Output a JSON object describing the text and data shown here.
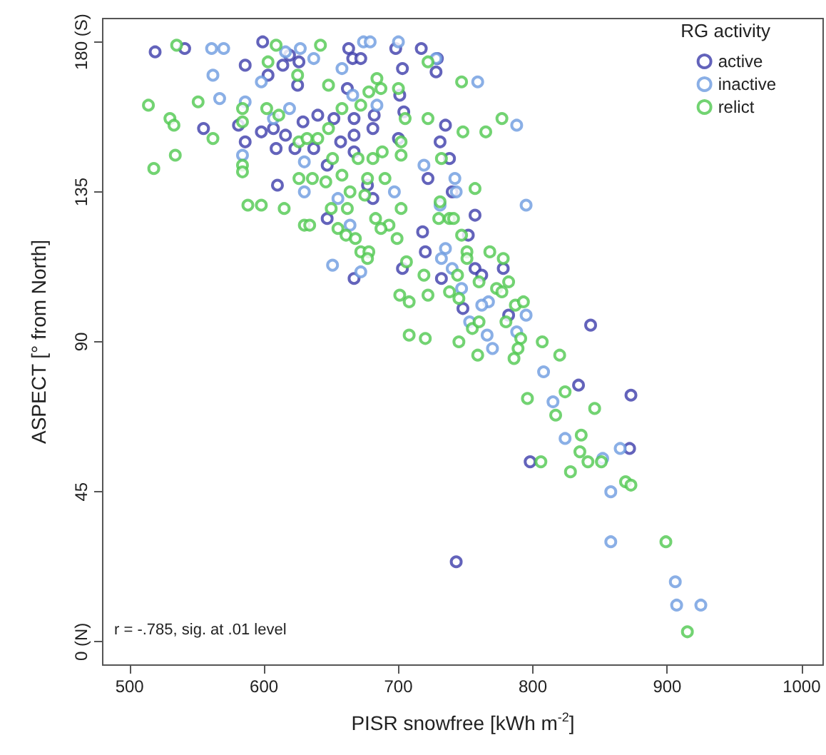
{
  "chart_data": {
    "type": "scatter",
    "xlabel": "PISR snowfree [kWh m$^{-2}$]",
    "ylabel": "ASPECT [° from North]",
    "legend_title": "RG activity",
    "annotations": [
      "r = -.785, sig. at .01 level"
    ],
    "xlim": [
      480,
      1016
    ],
    "xticks": [
      500,
      600,
      700,
      800,
      900,
      1000
    ],
    "ylim": [
      -7,
      187
    ],
    "yticks": [
      {
        "value": 0,
        "label": "0 (N)"
      },
      45,
      90,
      135,
      {
        "value": 180,
        "label": "180 (S)"
      }
    ],
    "grid": false,
    "legend": "top right",
    "marker": "circle",
    "series": [
      {
        "name": "active",
        "color": "#3c3caa",
        "x": [
          519,
          541,
          599,
          619,
          614,
          603,
          626,
          625,
          663,
          666,
          672,
          662,
          698,
          717,
          729,
          728,
          703,
          701,
          586,
          555,
          581,
          598,
          616,
          607,
          629,
          640,
          652,
          667,
          682,
          681,
          667,
          657,
          623,
          609,
          637,
          586,
          667,
          704,
          700,
          731,
          735,
          722,
          647,
          610,
          677,
          681,
          647,
          718,
          720,
          703,
          732,
          667,
          740,
          738,
          757,
          752,
          757,
          762,
          778,
          748,
          782,
          843,
          834,
          873,
          798,
          872,
          743
        ],
        "values": [
          177,
          178,
          180,
          176,
          173,
          170,
          174,
          167,
          178,
          175,
          175,
          166,
          178,
          178,
          175,
          171,
          172,
          164,
          173,
          154,
          155,
          153,
          152,
          154,
          156,
          158,
          157,
          157,
          158,
          154,
          152,
          150,
          148,
          148,
          148,
          150,
          147,
          159,
          151,
          150,
          155,
          139,
          143,
          137,
          137,
          133,
          127,
          123,
          117,
          112,
          109,
          109,
          135,
          145,
          128,
          122,
          112,
          110,
          112,
          100,
          98,
          95,
          77,
          74,
          54,
          58,
          24
        ]
      },
      {
        "name": "inactive",
        "color": "#6d9be0",
        "x": [
          561,
          570,
          562,
          567,
          586,
          598,
          616,
          627,
          637,
          674,
          679,
          658,
          666,
          684,
          700,
          607,
          619,
          630,
          584,
          630,
          655,
          664,
          697,
          719,
          651,
          672,
          731,
          735,
          732,
          728,
          759,
          788,
          742,
          743,
          795,
          740,
          747,
          767,
          762,
          795,
          753,
          788,
          766,
          770,
          808,
          815,
          824,
          852,
          865,
          858,
          858,
          906,
          907,
          925
        ],
        "values": [
          178,
          178,
          170,
          163,
          162,
          168,
          177,
          178,
          175,
          180,
          180,
          172,
          164,
          161,
          180,
          157,
          160,
          144,
          146,
          135,
          133,
          125,
          135,
          143,
          113,
          111,
          131,
          118,
          115,
          175,
          168,
          155,
          139,
          135,
          131,
          112,
          106,
          102,
          101,
          98,
          96,
          93,
          92,
          88,
          81,
          72,
          61,
          55,
          58,
          45,
          30,
          18,
          11,
          11
        ]
      },
      {
        "name": "relict",
        "color": "#4fc84f",
        "x": [
          535,
          514,
          551,
          530,
          533,
          562,
          534,
          518,
          584,
          584,
          584,
          584,
          588,
          598,
          615,
          609,
          642,
          603,
          625,
          602,
          611,
          626,
          632,
          640,
          648,
          658,
          672,
          648,
          678,
          687,
          700,
          684,
          722,
          651,
          670,
          681,
          688,
          702,
          702,
          705,
          722,
          626,
          636,
          646,
          658,
          677,
          690,
          664,
          675,
          650,
          662,
          630,
          634,
          655,
          661,
          668,
          683,
          693,
          687,
          699,
          702,
          731,
          730,
          738,
          672,
          678,
          677,
          706,
          719,
          701,
          708,
          722,
          708,
          720,
          747,
          777,
          748,
          765,
          732,
          757,
          741,
          747,
          768,
          778,
          751,
          751,
          760,
          773,
          777,
          782,
          744,
          738,
          745,
          787,
          793,
          780,
          755,
          807,
          791,
          745,
          759,
          760,
          789,
          786,
          820,
          796,
          824,
          817,
          846,
          836,
          835,
          841,
          806,
          828,
          851,
          869,
          873,
          899,
          915
        ],
        "values": [
          179,
          161,
          162,
          157,
          155,
          151,
          146,
          142,
          160,
          156,
          143,
          141,
          131,
          131,
          130,
          179,
          179,
          174,
          170,
          160,
          158,
          150,
          151,
          151,
          154,
          160,
          161,
          167,
          165,
          166,
          166,
          169,
          174,
          145,
          145,
          145,
          147,
          146,
          150,
          157,
          157,
          139,
          139,
          138,
          140,
          139,
          139,
          135,
          134,
          130,
          130,
          125,
          125,
          124,
          122,
          121,
          127,
          125,
          124,
          121,
          130,
          132,
          127,
          127,
          117,
          117,
          115,
          114,
          110,
          104,
          102,
          104,
          92,
          91,
          168,
          157,
          153,
          153,
          145,
          136,
          127,
          122,
          117,
          115,
          117,
          115,
          108,
          106,
          105,
          108,
          110,
          105,
          103,
          101,
          102,
          96,
          94,
          90,
          91,
          90,
          86,
          96,
          88,
          85,
          86,
          73,
          75,
          68,
          70,
          62,
          57,
          54,
          54,
          51,
          54,
          48,
          47,
          30,
          3
        ]
      }
    ]
  }
}
